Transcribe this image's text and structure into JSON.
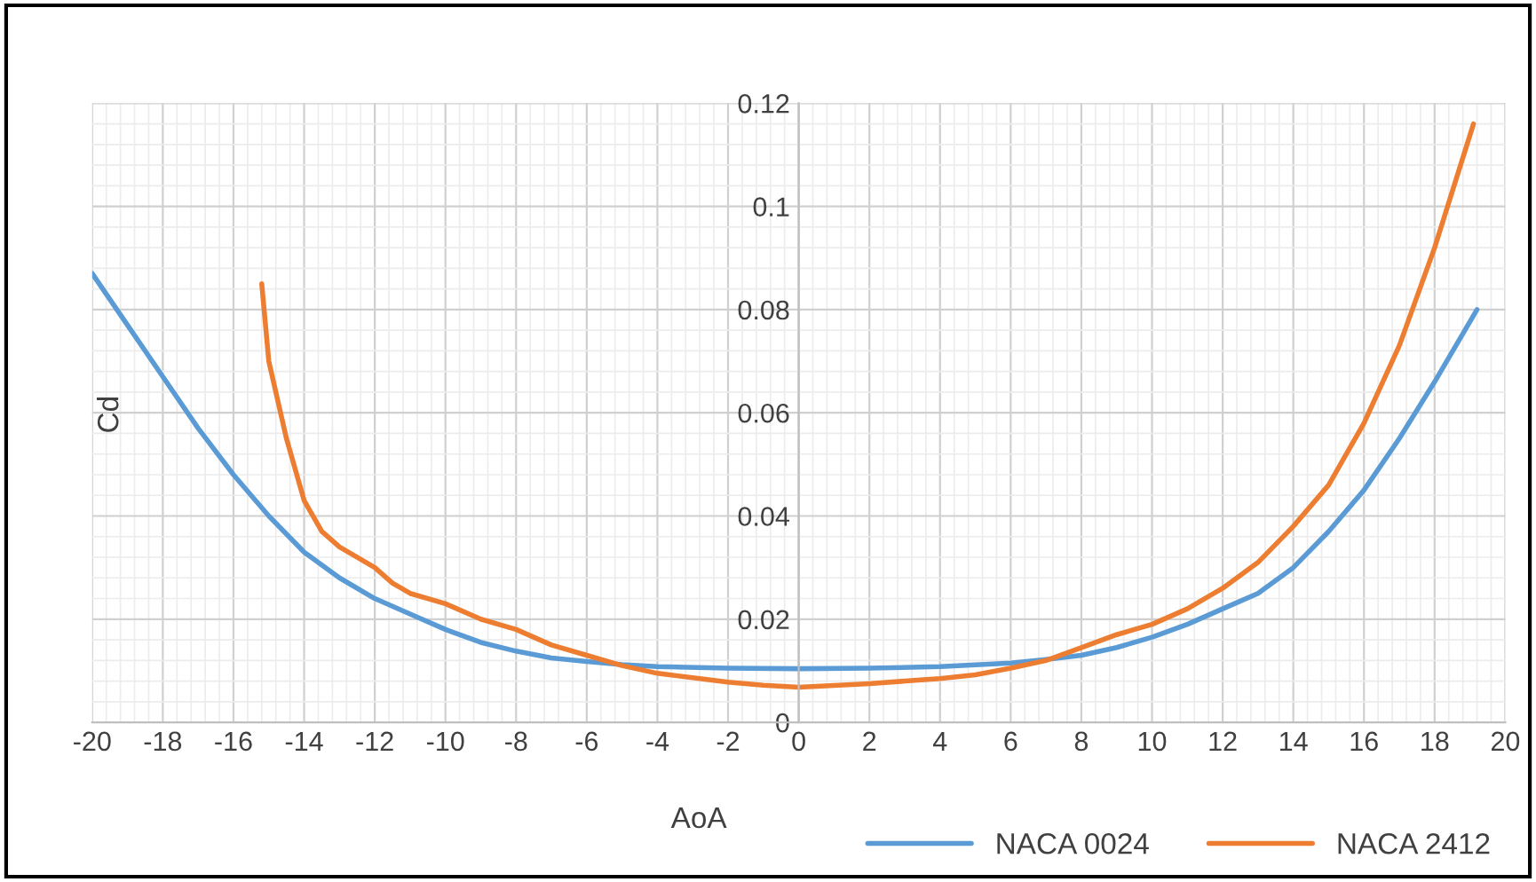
{
  "chart_data": {
    "type": "line",
    "xlabel": "AoA",
    "ylabel": "Cd",
    "xlim": [
      -20,
      20
    ],
    "xticks": [
      -20,
      -18,
      -16,
      -14,
      -12,
      -10,
      -8,
      -6,
      -4,
      -2,
      0,
      2,
      4,
      6,
      8,
      10,
      12,
      14,
      16,
      18,
      20
    ],
    "ylim": [
      0,
      0.12
    ],
    "yticks": [
      0,
      0.02,
      0.04,
      0.06,
      0.08,
      0.1,
      0.12
    ],
    "grid": true,
    "legend": "bottom",
    "marker": "none",
    "line_style": "solid",
    "series": [
      {
        "name": "NACA 0024",
        "color": "#5b9bd5",
        "x": [
          -20,
          -19,
          -18,
          -17,
          -16,
          -15,
          -14,
          -13,
          -12,
          -11,
          -10,
          -9,
          -8,
          -7,
          -6,
          -5,
          -4,
          -2,
          0,
          2,
          4,
          6,
          7,
          8,
          9,
          10,
          11,
          12,
          13,
          14,
          15,
          16,
          17,
          18,
          19.2
        ],
        "values": [
          0.087,
          0.077,
          0.067,
          0.057,
          0.048,
          0.04,
          0.033,
          0.028,
          0.024,
          0.021,
          0.018,
          0.0155,
          0.0138,
          0.0125,
          0.0118,
          0.0112,
          0.0108,
          0.0105,
          0.0104,
          0.0105,
          0.0108,
          0.0115,
          0.0122,
          0.013,
          0.0145,
          0.0165,
          0.019,
          0.022,
          0.025,
          0.03,
          0.037,
          0.045,
          0.055,
          0.066,
          0.08
        ]
      },
      {
        "name": "NACA 2412",
        "color": "#ed7d31",
        "x": [
          -15.2,
          -15,
          -14.5,
          -14,
          -13.5,
          -13,
          -12,
          -11.5,
          -11,
          -10,
          -9,
          -8,
          -7,
          -6,
          -5,
          -4,
          -2,
          -1,
          0,
          2,
          4,
          5,
          6,
          7,
          8,
          9,
          10,
          11,
          12,
          13,
          14,
          15,
          16,
          17,
          18,
          19.1
        ],
        "values": [
          0.085,
          0.07,
          0.055,
          0.043,
          0.037,
          0.034,
          0.03,
          0.027,
          0.025,
          0.023,
          0.02,
          0.018,
          0.015,
          0.013,
          0.011,
          0.0095,
          0.0078,
          0.0072,
          0.0068,
          0.0075,
          0.0085,
          0.0092,
          0.0105,
          0.012,
          0.0145,
          0.017,
          0.019,
          0.022,
          0.026,
          0.031,
          0.038,
          0.046,
          0.058,
          0.073,
          0.092,
          0.116
        ]
      }
    ]
  }
}
